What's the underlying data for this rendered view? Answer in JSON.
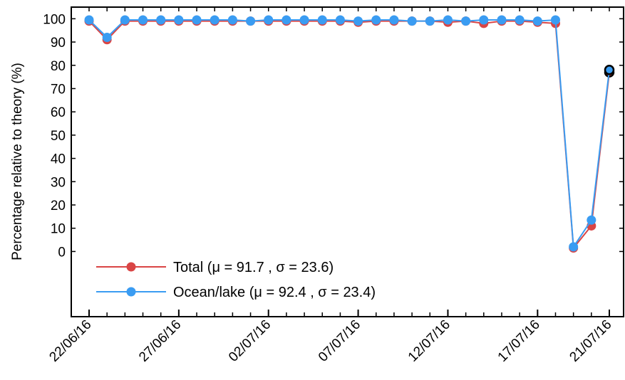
{
  "chart_data": {
    "type": "line",
    "title": "",
    "xlabel": "",
    "ylabel": "Percentage relative to theory (%)",
    "ylim": [
      -28,
      105
    ],
    "y_ticks": [
      0,
      10,
      20,
      30,
      40,
      50,
      60,
      70,
      80,
      90,
      100
    ],
    "x_tick_labels": [
      "22/06/16",
      "27/06/16",
      "02/07/16",
      "07/07/16",
      "12/07/16",
      "17/07/16",
      "21/07/16"
    ],
    "x_dates": [
      "22/06/16",
      "23/06/16",
      "24/06/16",
      "25/06/16",
      "26/06/16",
      "27/06/16",
      "28/06/16",
      "29/06/16",
      "30/06/16",
      "01/07/16",
      "02/07/16",
      "03/07/16",
      "04/07/16",
      "05/07/16",
      "06/07/16",
      "07/07/16",
      "08/07/16",
      "09/07/16",
      "10/07/16",
      "11/07/16",
      "12/07/16",
      "13/07/16",
      "14/07/16",
      "15/07/16",
      "16/07/16",
      "17/07/16",
      "18/07/16",
      "19/07/16",
      "20/07/16",
      "21/07/16"
    ],
    "grid": false,
    "legend_position": "bottom-left",
    "series": [
      {
        "name": "Total (μ = 91.7 , σ = 23.6)",
        "color": "#d94545",
        "values": [
          99,
          91,
          99,
          99,
          99,
          99,
          99,
          99,
          99,
          99,
          99,
          99,
          99,
          99,
          99,
          98.5,
          99,
          99,
          99,
          99,
          98.5,
          99,
          98,
          99,
          99,
          98.5,
          98,
          1.5,
          11,
          77
        ]
      },
      {
        "name": "Ocean/lake (μ = 92.4 , σ = 23.4)",
        "color": "#3a9cf2",
        "values": [
          99.5,
          92,
          99.5,
          99.5,
          99.5,
          99.5,
          99.5,
          99.5,
          99.5,
          99,
          99.5,
          99.5,
          99.5,
          99.5,
          99.5,
          99,
          99.5,
          99.5,
          99,
          99,
          99.5,
          99,
          99.5,
          99.5,
          99.5,
          99,
          99.5,
          2,
          13.5,
          78
        ]
      }
    ]
  }
}
